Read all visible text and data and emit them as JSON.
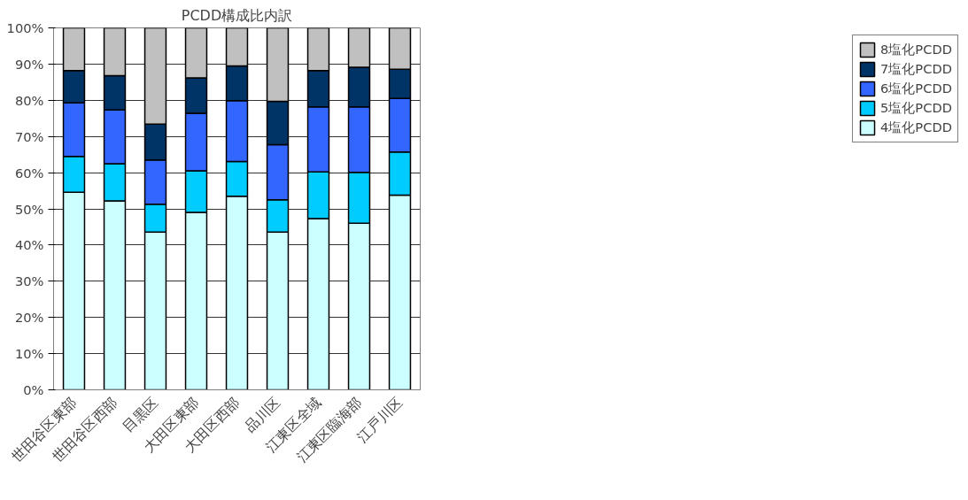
{
  "chart_data": {
    "type": "bar",
    "title": "PCDD構成比内訳",
    "stacked": true,
    "categories": [
      "世田谷区東部",
      "世田谷区西部",
      "目黒区",
      "大田区東部",
      "大田区西部",
      "品川区",
      "江東区全域",
      "江東区臨海部",
      "江戸川区"
    ],
    "series": [
      {
        "name": "4塩化PCDD",
        "color": "#ccffff",
        "values": [
          54.6,
          52.2,
          43.6,
          49.0,
          53.5,
          43.6,
          47.3,
          46.0,
          53.8
        ]
      },
      {
        "name": "5塩化PCDD",
        "color": "#00ccff",
        "values": [
          9.9,
          10.3,
          7.7,
          11.5,
          9.6,
          8.9,
          12.9,
          14.1,
          11.9
        ]
      },
      {
        "name": "6塩化PCDD",
        "color": "#3366ff",
        "values": [
          14.8,
          14.8,
          12.2,
          15.9,
          16.8,
          15.2,
          18.0,
          18.1,
          14.8
        ]
      },
      {
        "name": "7塩化PCDD",
        "color": "#003366",
        "values": [
          8.9,
          9.5,
          9.9,
          9.8,
          9.6,
          12.0,
          10.0,
          10.9,
          8.1
        ]
      },
      {
        "name": "8塩化PCDD",
        "color": "#c0c0c0",
        "values": [
          11.8,
          13.2,
          26.6,
          13.8,
          10.5,
          20.3,
          11.8,
          10.9,
          11.4
        ]
      }
    ],
    "ylim": [
      0,
      100
    ],
    "yticks": [
      {
        "value": 0,
        "label": "0%"
      },
      {
        "value": 10,
        "label": "10%"
      },
      {
        "value": 20,
        "label": "20%"
      },
      {
        "value": 30,
        "label": "30%"
      },
      {
        "value": 40,
        "label": "40%"
      },
      {
        "value": 50,
        "label": "50%"
      },
      {
        "value": 60,
        "label": "60%"
      },
      {
        "value": 70,
        "label": "70%"
      },
      {
        "value": 80,
        "label": "80%"
      },
      {
        "value": 90,
        "label": "90%"
      },
      {
        "value": 100,
        "label": "100%"
      }
    ],
    "grid": "y",
    "legend": "right"
  }
}
